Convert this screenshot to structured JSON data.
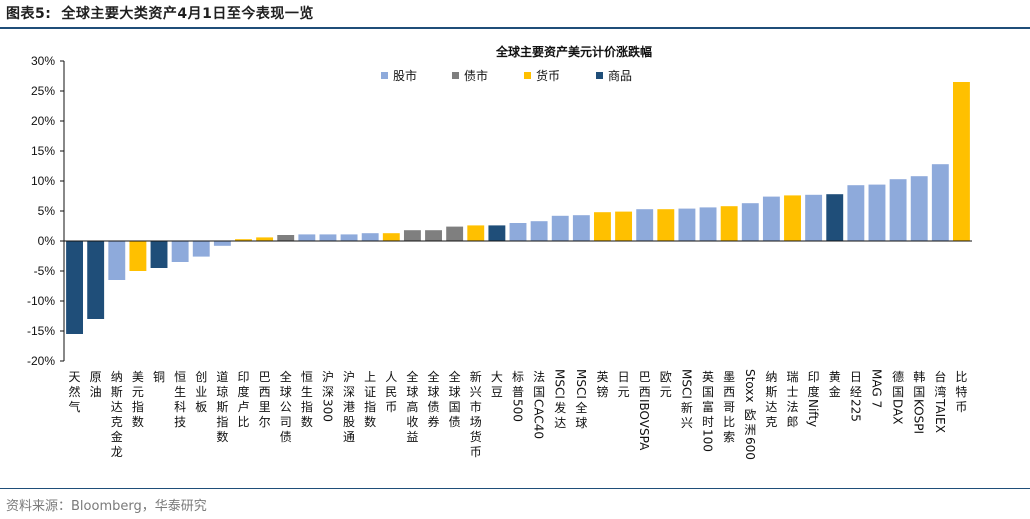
{
  "header": {
    "figure_num": "图表5:",
    "title": "全球主要大类资产4月1日至今表现一览"
  },
  "source": "资料来源：Bloomberg，华泰研究",
  "chart_data": {
    "type": "bar",
    "title": "全球主要资产美元计价涨跌幅",
    "ylim": [
      -20,
      30
    ],
    "yticks": [
      "-20%",
      "-15%",
      "-10%",
      "-5%",
      "0%",
      "5%",
      "10%",
      "15%",
      "20%",
      "25%",
      "30%"
    ],
    "legend_position": "top",
    "legend": [
      {
        "name": "股市",
        "color": "#8eaadb"
      },
      {
        "name": "债市",
        "color": "#7f7f7f"
      },
      {
        "name": "货币",
        "color": "#ffc000"
      },
      {
        "name": "商品",
        "color": "#1f4e79"
      }
    ],
    "categories": [
      "天然气",
      "原油",
      "纳斯达克金龙",
      "美元指数",
      "铜",
      "恒生科技",
      "创业板",
      "道琼斯指数",
      "印度卢比",
      "巴西里尔",
      "全球公司债",
      "恒生指数",
      "沪深300",
      "沪深港股通",
      "上证指数",
      "人民币",
      "全球高收益",
      "全球债券",
      "全球国债",
      "新兴市场货币",
      "大豆",
      "标普500",
      "法国CAC40",
      "MSCI发达",
      "MSCI全球",
      "英镑",
      "日元",
      "巴西IBOVSPA",
      "欧元",
      "MSCI新兴",
      "英国富时100",
      "墨西哥比索",
      "Stoxx欧洲600",
      "纳斯达克",
      "瑞士法郎",
      "印度Nifty",
      "黄金",
      "日经225",
      "MAG 7",
      "德国DAX",
      "韩国KOSPI",
      "台湾TAIEX",
      "比特币"
    ],
    "values": [
      -15.5,
      -13,
      -6.5,
      -5,
      -4.5,
      -3.5,
      -2.6,
      -0.8,
      0.3,
      0.6,
      1.0,
      1.1,
      1.1,
      1.1,
      1.3,
      1.3,
      1.8,
      1.8,
      2.4,
      2.6,
      2.6,
      3.0,
      3.3,
      4.2,
      4.3,
      4.8,
      4.9,
      5.3,
      5.3,
      5.4,
      5.6,
      5.8,
      6.3,
      7.4,
      7.6,
      7.7,
      7.8,
      9.3,
      9.4,
      10.3,
      10.8,
      12.8,
      26.5
    ],
    "types": [
      "商品",
      "商品",
      "股市",
      "货币",
      "商品",
      "股市",
      "股市",
      "股市",
      "货币",
      "货币",
      "债市",
      "股市",
      "股市",
      "股市",
      "股市",
      "货币",
      "债市",
      "债市",
      "债市",
      "货币",
      "商品",
      "股市",
      "股市",
      "股市",
      "股市",
      "货币",
      "货币",
      "股市",
      "货币",
      "股市",
      "股市",
      "货币",
      "股市",
      "股市",
      "货币",
      "股市",
      "商品",
      "股市",
      "股市",
      "股市",
      "股市",
      "股市",
      "货币"
    ]
  }
}
